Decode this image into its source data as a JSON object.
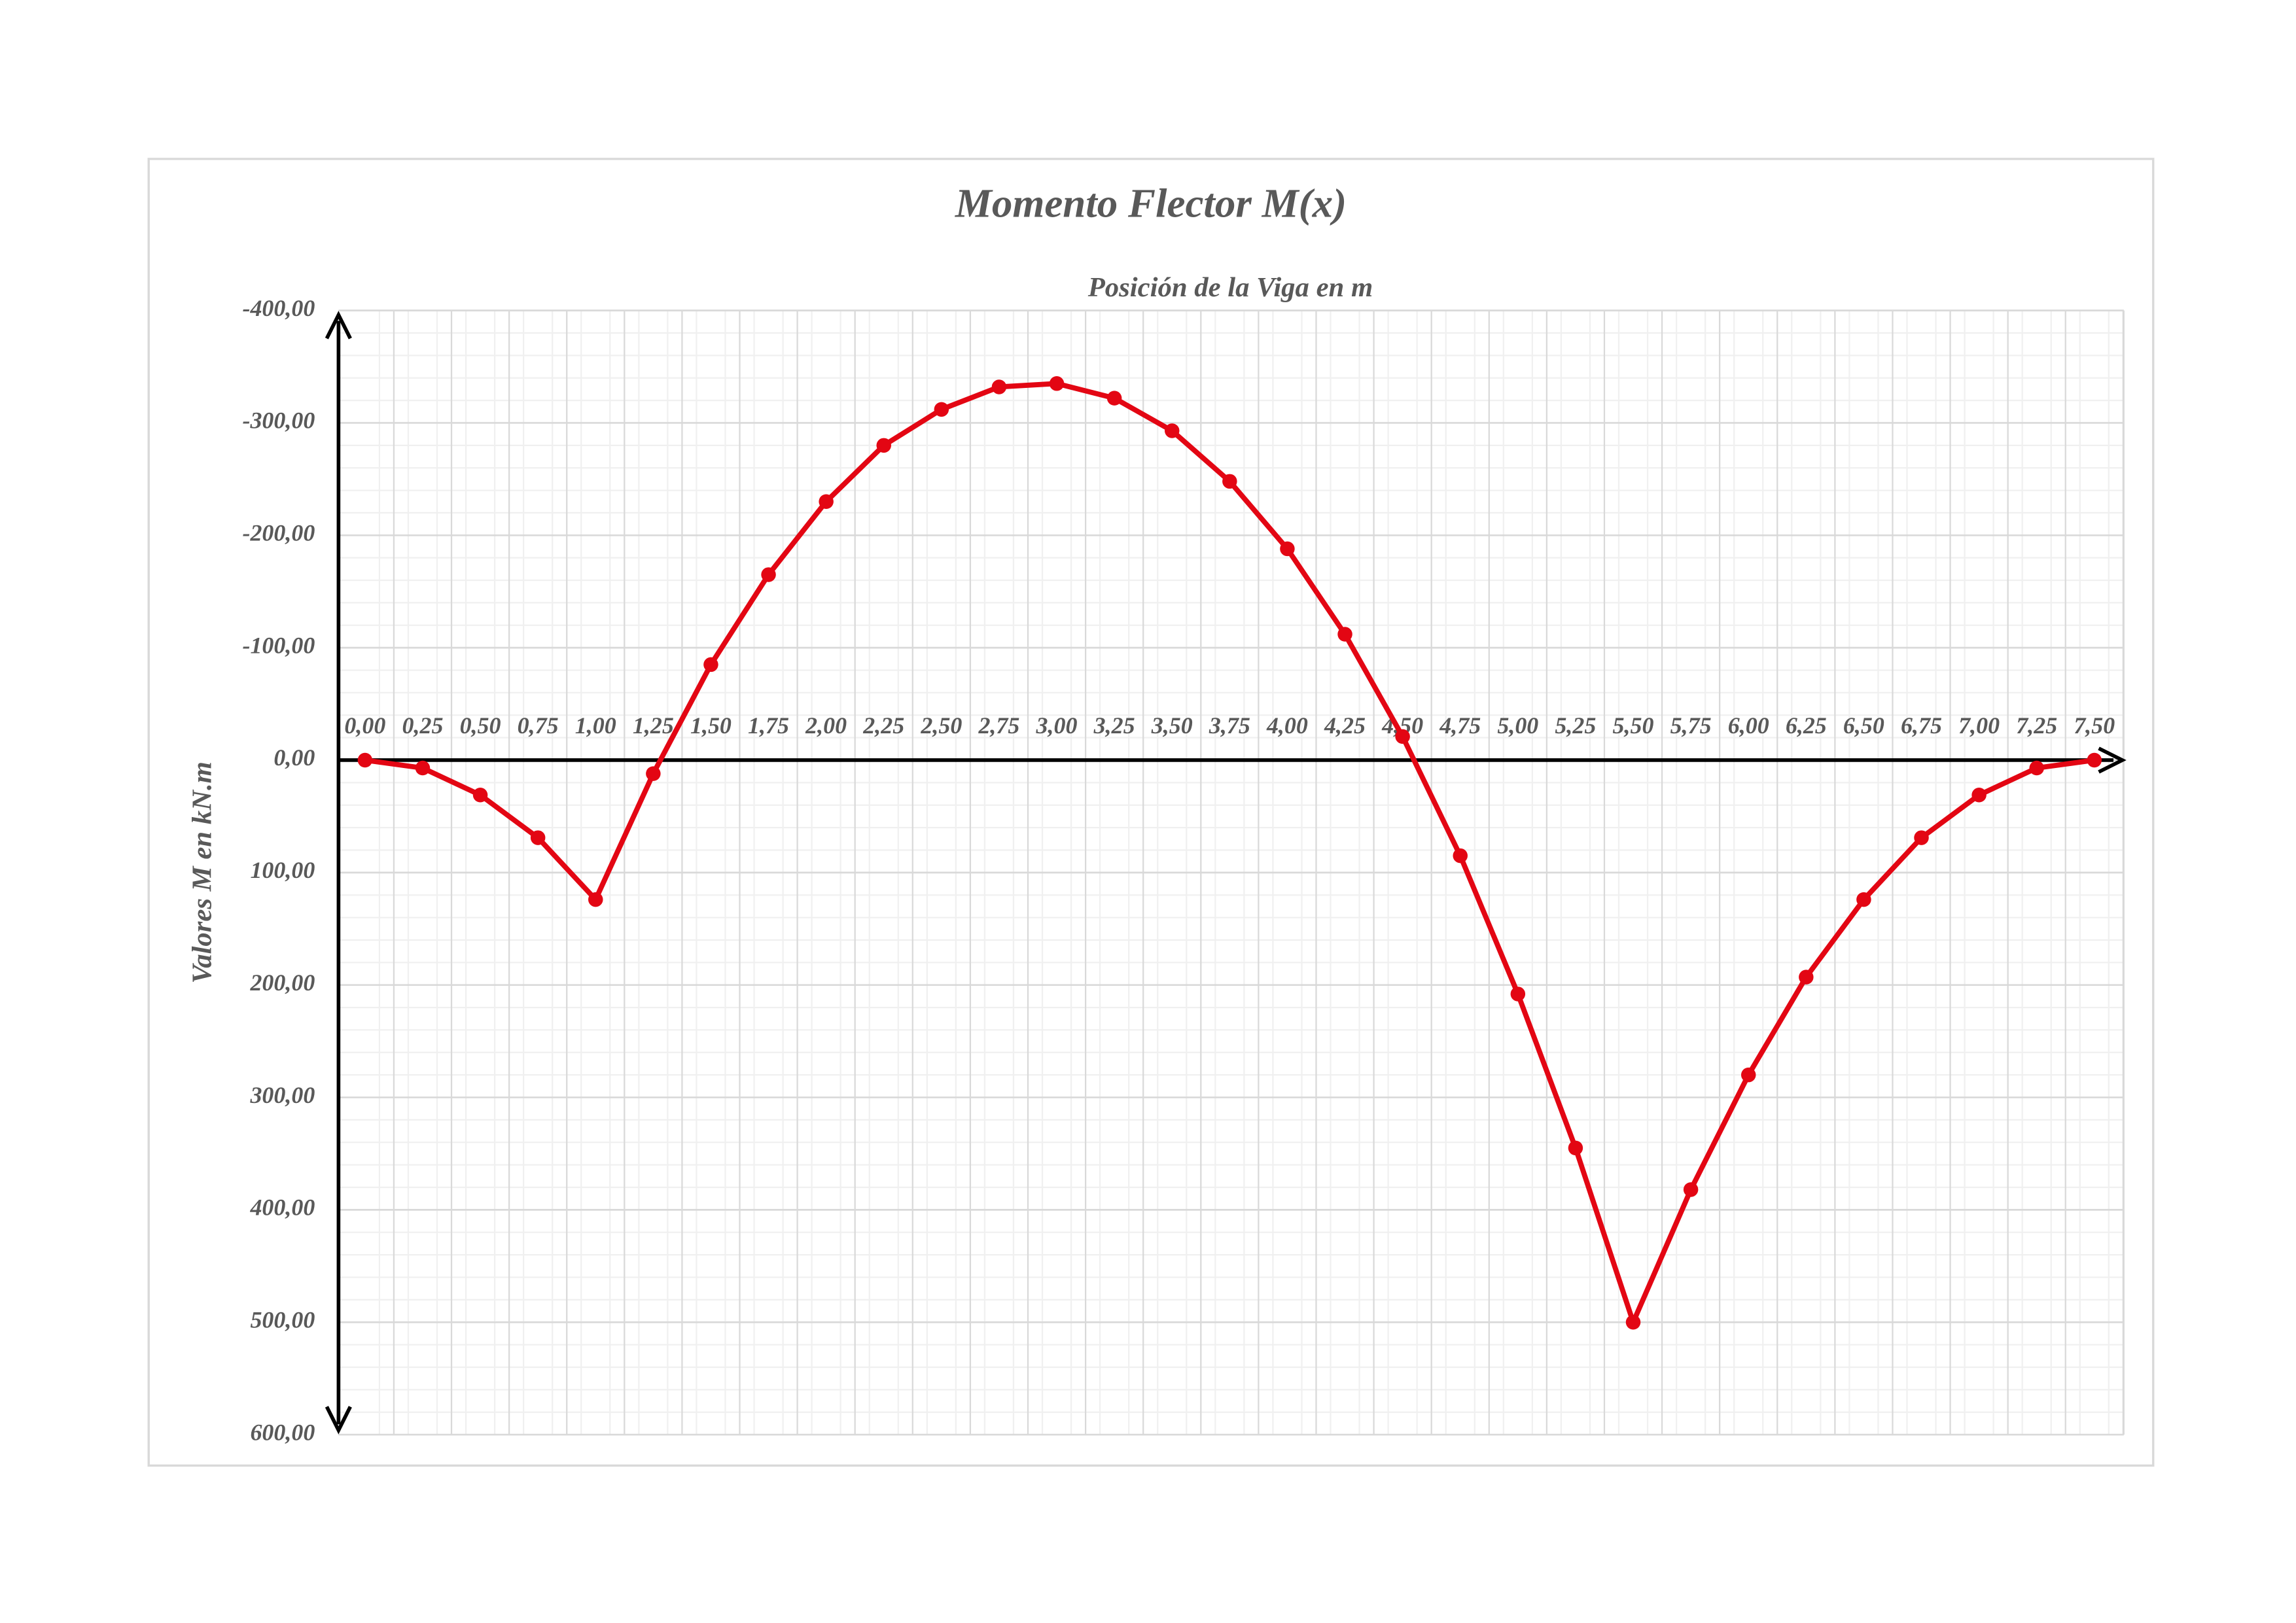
{
  "chart_data": {
    "type": "line",
    "title": "Momento Flector M(x)",
    "x_label": "Posición de la Viga en m",
    "y_label": "Valores M en kN.m",
    "categories": [
      "0,00",
      "0,25",
      "0,50",
      "0,75",
      "1,00",
      "1,25",
      "1,50",
      "1,75",
      "2,00",
      "2,25",
      "2,50",
      "2,75",
      "3,00",
      "3,25",
      "3,50",
      "3,75",
      "4,00",
      "4,25",
      "4,50",
      "4,75",
      "5,00",
      "5,25",
      "5,50",
      "5,75",
      "6,00",
      "6,25",
      "6,50",
      "6,75",
      "7,00",
      "7,25",
      "7,50"
    ],
    "series": [
      {
        "name": "M(x)",
        "color": "#e30613",
        "values": [
          0,
          7,
          31,
          69,
          124,
          12,
          -85,
          -165,
          -230,
          -280,
          -312,
          -332,
          -335,
          -322,
          -293,
          -248,
          -188,
          -112,
          -21,
          85,
          208,
          345,
          500,
          382,
          280,
          193,
          124,
          69,
          31,
          7,
          0
        ]
      }
    ],
    "ylim": [
      600,
      -400
    ],
    "yticks": [
      {
        "value": -400,
        "label": "-400,00"
      },
      {
        "value": -300,
        "label": "-300,00"
      },
      {
        "value": -200,
        "label": "-200,00"
      },
      {
        "value": -100,
        "label": "-100,00"
      },
      {
        "value": 0,
        "label": "0,00"
      },
      {
        "value": 100,
        "label": "100,00"
      },
      {
        "value": 200,
        "label": "200,00"
      },
      {
        "value": 300,
        "label": "300,00"
      },
      {
        "value": 400,
        "label": "400,00"
      },
      {
        "value": 500,
        "label": "500,00"
      },
      {
        "value": 600,
        "label": "600,00"
      }
    ],
    "grid": true
  }
}
